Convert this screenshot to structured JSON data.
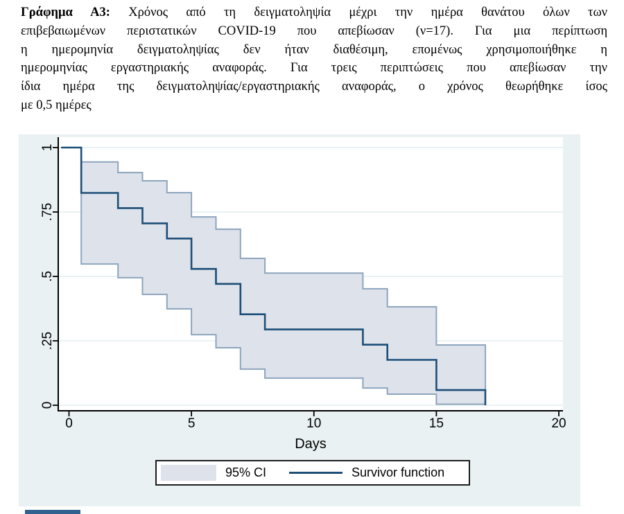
{
  "caption": {
    "bold_prefix": "Γράφημα Α3:",
    "line1_rest": " Χρόνος από τη δειγματοληψία μέχρι την ημέρα θανάτου όλων των",
    "lines": [
      "επιβεβαιωμένων περιστατικών COVID-19 που απεβίωσαν (ν=17). Για μια περίπτωση",
      "η ημερομηνία δειγματοληψίας δεν ήταν διαθέσιμη, επομένως χρησιμοποιήθηκε η",
      "ημερομηνίας εργαστηριακής αναφοράς. Για τρεις περιπτώσεις που απεβίωσαν την",
      "ίδια ημέρα της δειγματοληψίας/εργαστηριακής αναφοράς, ο χρόνος θεωρήθηκε ίσος",
      "με 0,5 ημέρες"
    ]
  },
  "chart": {
    "xlabel": "Days",
    "x_tick_labels": [
      "0",
      "5",
      "10",
      "15",
      "20"
    ],
    "y_tick_labels": [
      "0",
      ".25",
      ".5",
      ".75",
      "1"
    ],
    "legend": {
      "ci_label": "95% CI",
      "line_label": "Survivor function"
    },
    "colors": {
      "figure_bg": "#e9f1f2",
      "plot_bg": "#ffffff",
      "grid": "#e2edef",
      "band_fill": "#dde2eb",
      "band_edge": "#8da5bd",
      "survivor_line": "#1d4e77",
      "axis": "#000000",
      "legend_border": "#1b1b1b",
      "bottom_bar": "#31618e"
    }
  },
  "chart_data": {
    "type": "line",
    "subtype": "kaplan-meier-step",
    "title": "",
    "xlabel": "Days",
    "ylabel": "",
    "xlim": [
      0,
      20
    ],
    "ylim": [
      0,
      1
    ],
    "x_ticks": [
      0,
      5,
      10,
      15,
      20
    ],
    "y_ticks": [
      0,
      0.25,
      0.5,
      0.75,
      1
    ],
    "grid": "horizontal",
    "legend_position": "bottom",
    "legend": [
      "95% CI",
      "Survivor function"
    ],
    "n_subjects": 17,
    "series": [
      {
        "name": "Survivor function",
        "step_times": [
          0,
          0.5,
          2,
          3,
          4,
          5,
          6,
          7,
          8,
          12,
          13,
          15,
          17
        ],
        "values": [
          1,
          0.824,
          0.765,
          0.706,
          0.647,
          0.529,
          0.471,
          0.353,
          0.294,
          0.235,
          0.176,
          0.059,
          0
        ]
      },
      {
        "name": "95% CI upper",
        "step_times": [
          0.5,
          2,
          3,
          4,
          5,
          6,
          7,
          8,
          12,
          13,
          15
        ],
        "values": [
          0.944,
          0.903,
          0.871,
          0.825,
          0.731,
          0.683,
          0.57,
          0.513,
          0.452,
          0.382,
          0.234
        ],
        "end_time": 17
      },
      {
        "name": "95% CI lower",
        "step_times": [
          0.5,
          2,
          3,
          4,
          5,
          6,
          7,
          8,
          12,
          13,
          15
        ],
        "values": [
          0.548,
          0.495,
          0.43,
          0.374,
          0.274,
          0.223,
          0.14,
          0.105,
          0.067,
          0.043,
          0.004
        ],
        "end_time": 17
      }
    ]
  }
}
